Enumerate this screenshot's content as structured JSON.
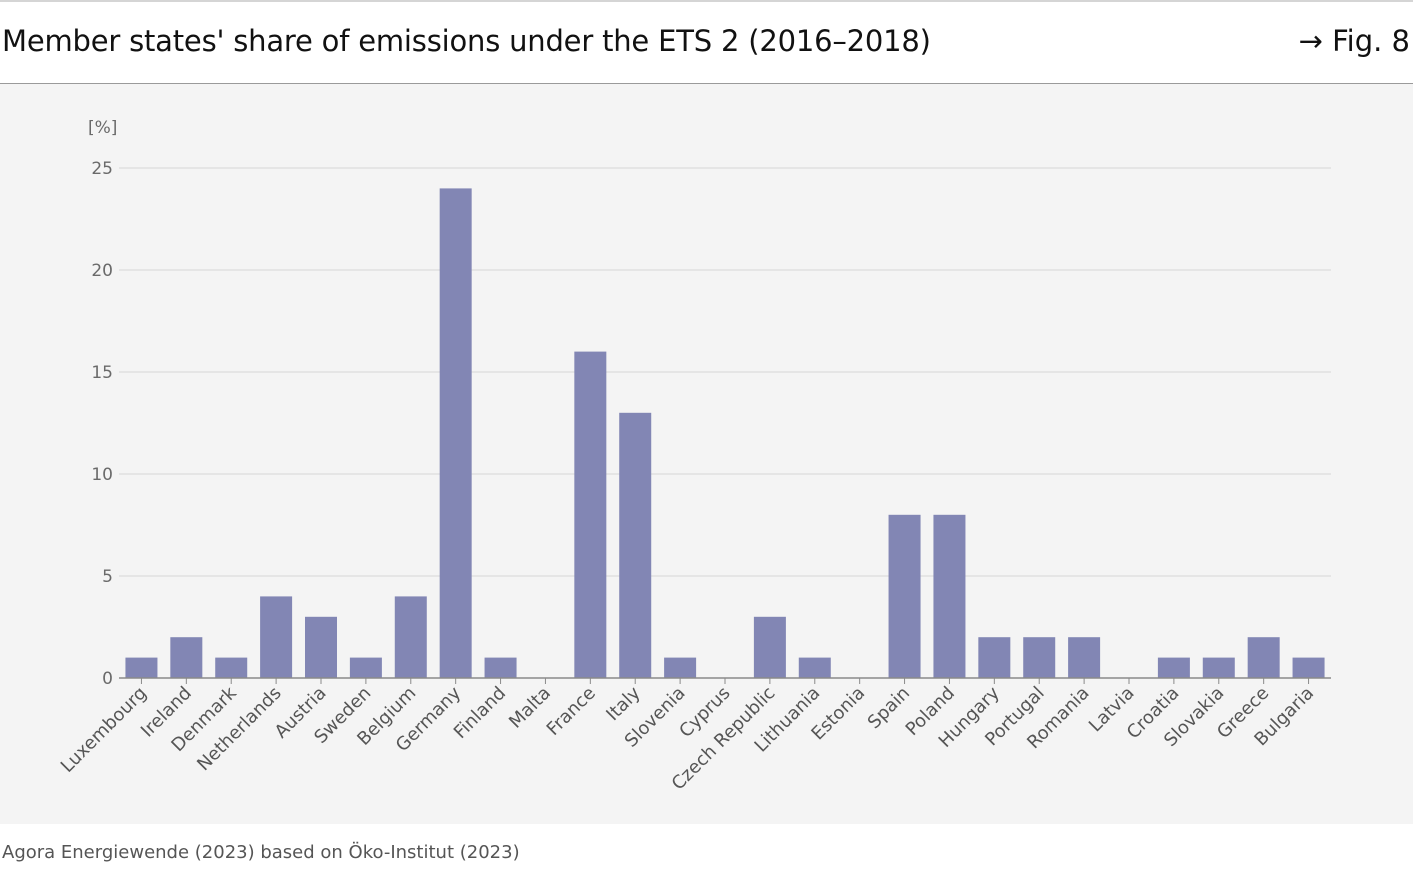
{
  "header": {
    "title": "Member states' share of emissions under the ETS 2 (2016–2018)",
    "figure_ref": "→ Fig. 8"
  },
  "footer": {
    "source": "Agora Energiewende (2023) based on Öko-Institut (2023)"
  },
  "colors": {
    "bar": "#8286b4",
    "grid": "#e0e0e0",
    "axis": "#8a8a8a",
    "panel": "#f4f4f4"
  },
  "chart_data": {
    "type": "bar",
    "title": "Member states' share of emissions under the ETS 2 (2016–2018)",
    "ylabel": "[%]",
    "xlabel": "",
    "ylim": [
      0,
      25
    ],
    "yticks": [
      0,
      5,
      10,
      15,
      20,
      25
    ],
    "grid": true,
    "categories": [
      "Luxembourg",
      "Ireland",
      "Denmark",
      "Netherlands",
      "Austria",
      "Sweden",
      "Belgium",
      "Germany",
      "Finland",
      "Malta",
      "France",
      "Italy",
      "Slovenia",
      "Cyprus",
      "Czech Republic",
      "Lithuania",
      "Estonia",
      "Spain",
      "Poland",
      "Hungary",
      "Portugal",
      "Romania",
      "Latvia",
      "Croatia",
      "Slovakia",
      "Greece",
      "Bulgaria"
    ],
    "values": [
      1,
      2,
      1,
      4,
      3,
      1,
      4,
      24,
      1,
      0,
      16,
      13,
      1,
      0,
      3,
      1,
      0,
      8,
      8,
      2,
      2,
      2,
      0,
      1,
      1,
      2,
      1
    ]
  }
}
